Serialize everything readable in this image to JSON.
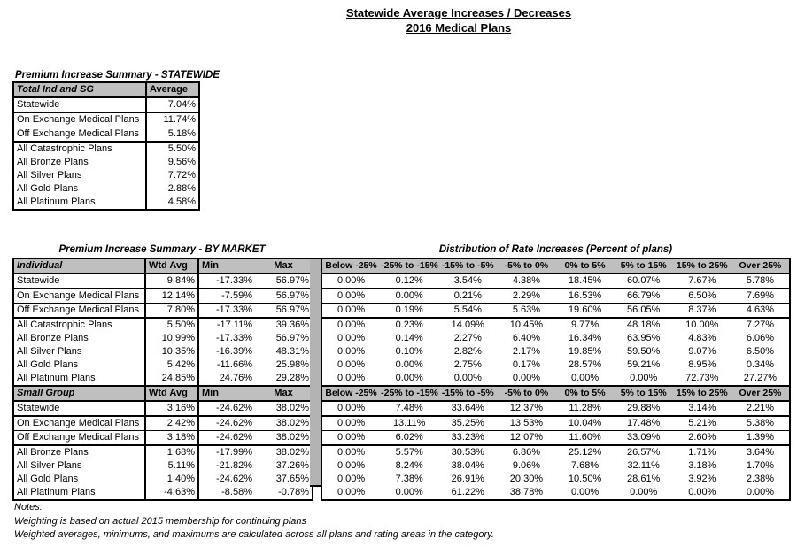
{
  "page_title": {
    "line1": "Statewide Average Increases / Decreases",
    "line2": "2016 Medical Plans"
  },
  "statewide_summary": {
    "title": "Premium Increase Summary - STATEWIDE",
    "header": [
      "Total Ind and SG",
      "Average"
    ],
    "rows": [
      [
        "Statewide",
        "7.04%"
      ],
      [
        "On Exchange Medical Plans",
        "11.74%"
      ],
      [
        "Off Exchange Medical Plans",
        "5.18%"
      ],
      [
        "All Catastrophic Plans",
        "5.50%"
      ],
      [
        "All Bronze Plans",
        "9.56%"
      ],
      [
        "All Silver Plans",
        "7.72%"
      ],
      [
        "All Gold Plans",
        "2.88%"
      ],
      [
        "All Platinum Plans",
        "4.58%"
      ]
    ]
  },
  "by_market": {
    "title": "Premium Increase Summary - BY MARKET",
    "individual": {
      "header": [
        "Individual",
        "Wtd Avg",
        "Min",
        "Max"
      ],
      "rows": [
        [
          "Statewide",
          "9.84%",
          "-17.33%",
          "56.97%"
        ],
        [
          "On Exchange Medical Plans",
          "12.14%",
          "-7.59%",
          "56.97%"
        ],
        [
          "Off Exchange Medical Plans",
          "7.80%",
          "-17.33%",
          "56.97%"
        ],
        [
          "All Catastrophic Plans",
          "5.50%",
          "-17.11%",
          "39.36%"
        ],
        [
          "All Bronze Plans",
          "10.99%",
          "-17.33%",
          "56.97%"
        ],
        [
          "All Silver Plans",
          "10.35%",
          "-16.39%",
          "48.31%"
        ],
        [
          "All Gold Plans",
          "5.42%",
          "-11.66%",
          "25.98%"
        ],
        [
          "All Platinum Plans",
          "24.85%",
          "24.76%",
          "29.28%"
        ]
      ]
    },
    "small_group": {
      "header": [
        "Small Group",
        "Wtd Avg",
        "Min",
        "Max"
      ],
      "rows": [
        [
          "Statewide",
          "3.16%",
          "-24.62%",
          "38.02%"
        ],
        [
          "On Exchange Medical Plans",
          "2.42%",
          "-24.62%",
          "38.02%"
        ],
        [
          "Off Exchange Medical Plans",
          "3.18%",
          "-24.62%",
          "38.02%"
        ],
        [
          "All Bronze Plans",
          "1.68%",
          "-17.99%",
          "38.02%"
        ],
        [
          "All Silver Plans",
          "5.11%",
          "-21.82%",
          "37.26%"
        ],
        [
          "All Gold Plans",
          "1.40%",
          "-24.62%",
          "37.65%"
        ],
        [
          "All Platinum Plans",
          "-4.63%",
          "-8.58%",
          "-0.78%"
        ]
      ]
    }
  },
  "distribution": {
    "title": "Distribution of Rate Increases (Percent of plans)",
    "header": [
      "Below -25%",
      "-25% to -15%",
      "-15% to -5%",
      "-5% to 0%",
      "0% to 5%",
      "5% to 15%",
      "15% to 25%",
      "Over 25%"
    ],
    "individual_rows": [
      [
        "0.00%",
        "0.12%",
        "3.54%",
        "4.38%",
        "18.45%",
        "60.07%",
        "7.67%",
        "5.78%"
      ],
      [
        "0.00%",
        "0.00%",
        "0.21%",
        "2.29%",
        "16.53%",
        "66.79%",
        "6.50%",
        "7.69%"
      ],
      [
        "0.00%",
        "0.19%",
        "5.54%",
        "5.63%",
        "19.60%",
        "56.05%",
        "8.37%",
        "4.63%"
      ],
      [
        "0.00%",
        "0.23%",
        "14.09%",
        "10.45%",
        "9.77%",
        "48.18%",
        "10.00%",
        "7.27%"
      ],
      [
        "0.00%",
        "0.14%",
        "2.27%",
        "6.40%",
        "16.34%",
        "63.95%",
        "4.83%",
        "6.06%"
      ],
      [
        "0.00%",
        "0.10%",
        "2.82%",
        "2.17%",
        "19.85%",
        "59.50%",
        "9.07%",
        "6.50%"
      ],
      [
        "0.00%",
        "0.00%",
        "2.75%",
        "0.17%",
        "28.57%",
        "59.21%",
        "8.95%",
        "0.34%"
      ],
      [
        "0.00%",
        "0.00%",
        "0.00%",
        "0.00%",
        "0.00%",
        "0.00%",
        "72.73%",
        "27.27%"
      ]
    ],
    "small_group_rows": [
      [
        "0.00%",
        "7.48%",
        "33.64%",
        "12.37%",
        "11.28%",
        "29.88%",
        "3.14%",
        "2.21%"
      ],
      [
        "0.00%",
        "13.11%",
        "35.25%",
        "13.53%",
        "10.04%",
        "17.48%",
        "5.21%",
        "5.38%"
      ],
      [
        "0.00%",
        "6.02%",
        "33.23%",
        "12.07%",
        "11.60%",
        "33.09%",
        "2.60%",
        "1.39%"
      ],
      [
        "0.00%",
        "5.57%",
        "30.53%",
        "6.86%",
        "25.12%",
        "26.57%",
        "1.71%",
        "3.64%"
      ],
      [
        "0.00%",
        "8.24%",
        "38.04%",
        "9.06%",
        "7.68%",
        "32.11%",
        "3.18%",
        "1.70%"
      ],
      [
        "0.00%",
        "7.38%",
        "26.91%",
        "20.30%",
        "10.50%",
        "28.61%",
        "3.92%",
        "2.38%"
      ],
      [
        "0.00%",
        "0.00%",
        "61.22%",
        "38.78%",
        "0.00%",
        "0.00%",
        "0.00%",
        "0.00%"
      ]
    ]
  },
  "notes": {
    "label": "Notes:",
    "line1": "Weighting is based on actual 2015 membership for continuing plans",
    "line2": "Weighted averages, minimums, and maximums are calculated across all plans and rating areas in the category."
  },
  "colors": {
    "header_bg": "#bfbfbf",
    "divider_bar": "#b3b3b3",
    "border": "#000000",
    "page_bg": "#ffffff"
  }
}
